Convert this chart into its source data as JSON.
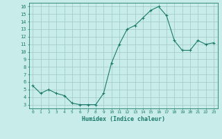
{
  "x": [
    0,
    1,
    2,
    3,
    4,
    5,
    6,
    7,
    8,
    9,
    10,
    11,
    12,
    13,
    14,
    15,
    16,
    17,
    18,
    19,
    20,
    21,
    22,
    23
  ],
  "y": [
    5.5,
    4.5,
    5.0,
    4.5,
    4.2,
    3.2,
    3.0,
    3.0,
    3.0,
    4.5,
    8.5,
    11.0,
    13.0,
    13.5,
    14.5,
    15.5,
    16.0,
    14.8,
    11.5,
    10.2,
    10.2,
    11.5,
    11.0,
    11.2
  ],
  "line_color": "#1a7a6a",
  "marker": "+",
  "markersize": 3,
  "linewidth": 0.8,
  "bg_color": "#c8ecea",
  "grid_color": "#a0c8c5",
  "xlabel": "Humidex (Indice chaleur)",
  "xlim": [
    -0.5,
    23.5
  ],
  "ylim": [
    2.5,
    16.5
  ],
  "yticks": [
    3,
    4,
    5,
    6,
    7,
    8,
    9,
    10,
    11,
    12,
    13,
    14,
    15,
    16
  ],
  "xtick_labels": [
    "0",
    "1",
    "2",
    "3",
    "4",
    "5",
    "6",
    "7",
    "8",
    "9",
    "10",
    "11",
    "12",
    "13",
    "14",
    "15",
    "16",
    "17",
    "18",
    "19",
    "20",
    "21",
    "22",
    "23"
  ],
  "tick_color": "#1a7a6a",
  "label_color": "#1a7a6a",
  "axis_color": "#1a7a6a"
}
